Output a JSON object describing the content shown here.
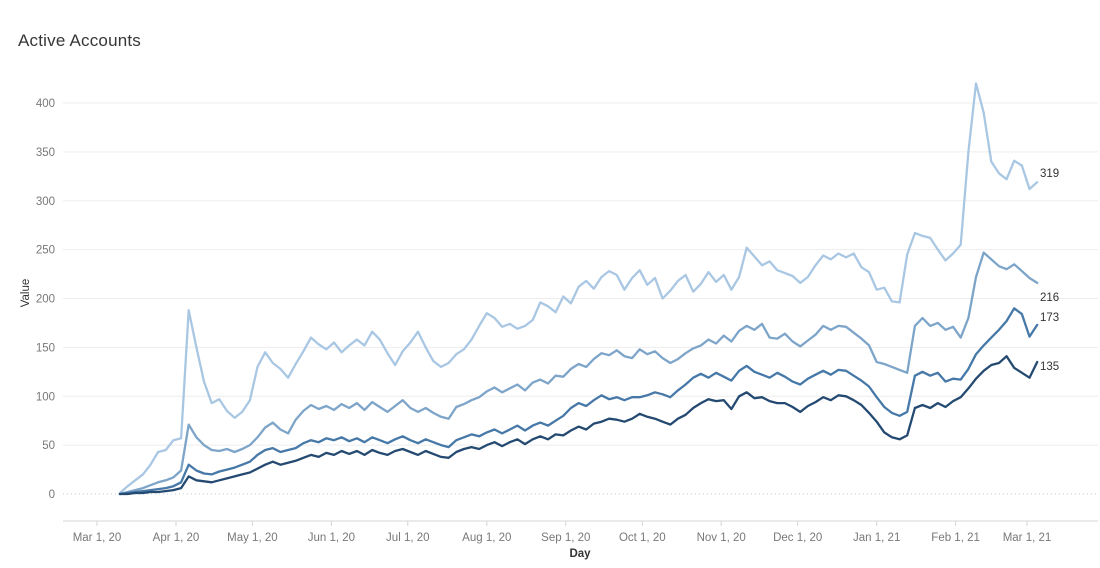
{
  "chart_data": {
    "type": "line",
    "title": "Active Accounts",
    "xlabel": "Day",
    "ylabel": "Value",
    "x_unit": "days since Mar 1, 2020",
    "x_start_day": 9,
    "x_step": 3,
    "x_axis_range_days": [
      0,
      372
    ],
    "ylim": [
      0,
      400
    ],
    "grid": "horizontal",
    "legend_position": "none",
    "yticks": [
      0,
      50,
      100,
      150,
      200,
      250,
      300,
      350,
      400
    ],
    "xticks": [
      {
        "label": "Mar 1, 20",
        "day": 0
      },
      {
        "label": "Apr 1, 20",
        "day": 31
      },
      {
        "label": "May 1, 20",
        "day": 61
      },
      {
        "label": "Jun 1, 20",
        "day": 92
      },
      {
        "label": "Jul 1, 20",
        "day": 122
      },
      {
        "label": "Aug 1, 20",
        "day": 153
      },
      {
        "label": "Sep 1, 20",
        "day": 184
      },
      {
        "label": "Oct 1, 20",
        "day": 214
      },
      {
        "label": "Nov 1, 20",
        "day": 245
      },
      {
        "label": "Dec 1, 20",
        "day": 275
      },
      {
        "label": "Jan 1, 21",
        "day": 306
      },
      {
        "label": "Feb 1, 21",
        "day": 337
      },
      {
        "label": "Mar 1, 21",
        "day": 365
      }
    ],
    "series": [
      {
        "name": "accounts-series-1",
        "color": "#a9c7e3",
        "end_label": "319",
        "values": [
          1,
          8,
          14,
          20,
          30,
          43,
          45,
          55,
          57,
          188,
          150,
          115,
          93,
          97,
          85,
          78,
          84,
          96,
          130,
          145,
          134,
          128,
          119,
          133,
          146,
          160,
          153,
          148,
          155,
          145,
          152,
          158,
          152,
          166,
          158,
          144,
          132,
          146,
          155,
          166,
          150,
          136,
          130,
          134,
          143,
          148,
          158,
          172,
          185,
          180,
          171,
          174,
          169,
          172,
          178,
          196,
          192,
          186,
          202,
          195,
          212,
          218,
          210,
          222,
          228,
          224,
          209,
          221,
          229,
          214,
          221,
          200,
          208,
          218,
          224,
          207,
          215,
          227,
          217,
          224,
          209,
          222,
          252,
          243,
          234,
          238,
          229,
          226,
          223,
          216,
          222,
          234,
          244,
          240,
          246,
          242,
          246,
          232,
          227,
          209,
          211,
          197,
          196,
          245,
          267,
          264,
          262,
          250,
          239,
          246,
          255,
          350,
          420,
          390,
          340,
          328,
          322,
          341,
          336,
          312,
          319
        ]
      },
      {
        "name": "accounts-series-2",
        "color": "#7da4c9",
        "end_label": "216",
        "values": [
          0,
          2,
          4,
          6,
          9,
          12,
          14,
          17,
          24,
          71,
          58,
          50,
          45,
          44,
          46,
          43,
          46,
          50,
          58,
          68,
          73,
          66,
          62,
          76,
          85,
          91,
          87,
          90,
          86,
          92,
          88,
          93,
          86,
          94,
          89,
          84,
          90,
          96,
          88,
          84,
          88,
          83,
          79,
          77,
          89,
          92,
          96,
          99,
          105,
          109,
          104,
          108,
          112,
          106,
          114,
          117,
          113,
          121,
          120,
          128,
          133,
          130,
          138,
          144,
          142,
          147,
          141,
          139,
          148,
          143,
          146,
          139,
          134,
          138,
          144,
          149,
          152,
          158,
          154,
          162,
          156,
          167,
          172,
          168,
          174,
          160,
          159,
          164,
          156,
          151,
          157,
          163,
          172,
          168,
          172,
          171,
          165,
          159,
          152,
          135,
          133,
          130,
          127,
          124,
          172,
          180,
          172,
          175,
          168,
          171,
          160,
          180,
          222,
          247,
          240,
          233,
          230,
          235,
          228,
          221,
          216
        ]
      },
      {
        "name": "accounts-series-3",
        "color": "#4678a8",
        "end_label": "173",
        "values": [
          0,
          1,
          2,
          3,
          4,
          5,
          6,
          8,
          12,
          30,
          24,
          21,
          20,
          23,
          25,
          27,
          30,
          33,
          40,
          45,
          47,
          43,
          45,
          47,
          52,
          55,
          53,
          57,
          55,
          58,
          54,
          57,
          53,
          58,
          55,
          52,
          56,
          59,
          55,
          52,
          56,
          53,
          50,
          48,
          55,
          58,
          61,
          59,
          63,
          66,
          62,
          66,
          70,
          65,
          70,
          73,
          70,
          75,
          80,
          88,
          93,
          90,
          96,
          101,
          97,
          99,
          96,
          99,
          99,
          101,
          104,
          102,
          99,
          106,
          112,
          119,
          123,
          119,
          124,
          120,
          116,
          126,
          131,
          125,
          122,
          119,
          124,
          120,
          115,
          112,
          118,
          122,
          126,
          122,
          127,
          126,
          121,
          116,
          110,
          99,
          89,
          83,
          80,
          84,
          121,
          125,
          121,
          124,
          115,
          118,
          117,
          128,
          143,
          152,
          160,
          168,
          177,
          190,
          184,
          161,
          173
        ]
      },
      {
        "name": "accounts-series-4",
        "color": "#254a72",
        "end_label": "135",
        "values": [
          0,
          0,
          1,
          1,
          2,
          2,
          3,
          4,
          6,
          18,
          14,
          13,
          12,
          14,
          16,
          18,
          20,
          22,
          26,
          30,
          33,
          30,
          32,
          34,
          37,
          40,
          38,
          42,
          40,
          44,
          41,
          44,
          40,
          45,
          42,
          40,
          44,
          46,
          43,
          40,
          44,
          41,
          38,
          37,
          43,
          46,
          48,
          46,
          50,
          53,
          49,
          53,
          56,
          51,
          56,
          59,
          56,
          61,
          60,
          65,
          69,
          66,
          72,
          74,
          77,
          76,
          74,
          77,
          82,
          79,
          77,
          74,
          71,
          77,
          81,
          88,
          93,
          97,
          95,
          96,
          87,
          100,
          104,
          98,
          99,
          95,
          93,
          93,
          89,
          84,
          90,
          94,
          99,
          96,
          101,
          100,
          96,
          91,
          83,
          74,
          63,
          58,
          56,
          60,
          88,
          91,
          88,
          93,
          89,
          95,
          99,
          108,
          118,
          126,
          132,
          134,
          141,
          129,
          124,
          119,
          135
        ]
      }
    ],
    "colors": {
      "grid": "#ededed",
      "zero_grid": "#c5cdd6",
      "axis_line": "#d4d4d4",
      "tick_label": "#787878",
      "axis_title": "#333333",
      "title": "#363636",
      "end_label": "#333333"
    }
  }
}
